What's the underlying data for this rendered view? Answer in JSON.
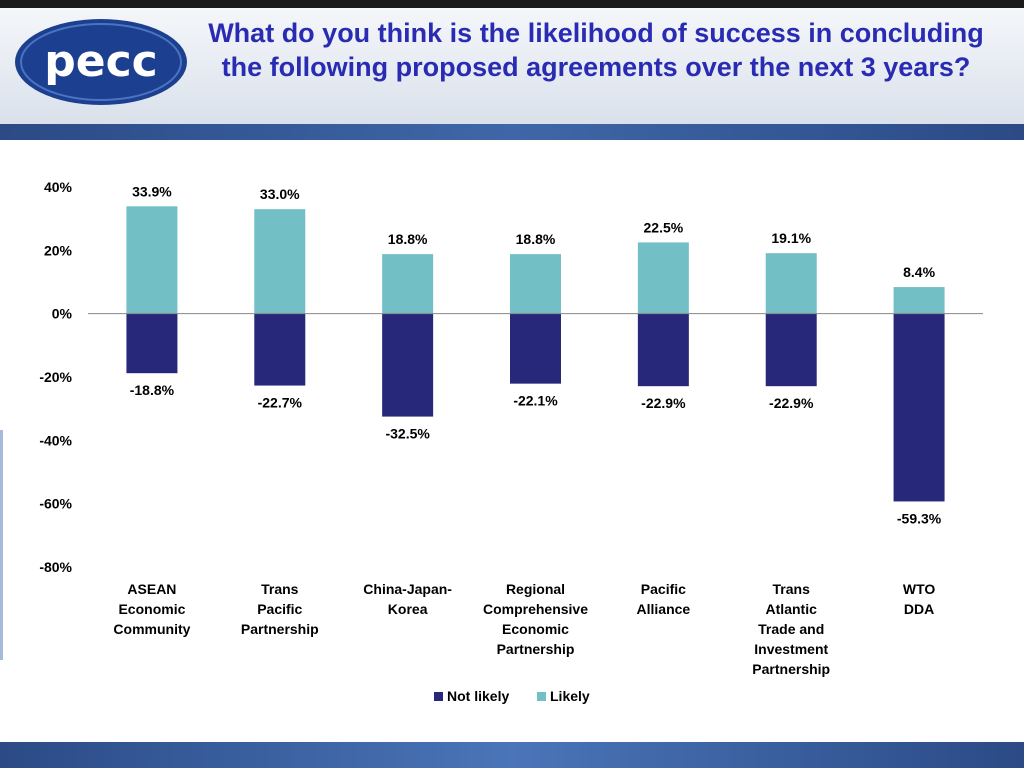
{
  "logo": {
    "text": "pecc"
  },
  "title": "What do you think is the likelihood of success in concluding the following proposed agreements over the next 3 years?",
  "colors": {
    "likely": "#72bfc6",
    "not_likely": "#27287a",
    "title": "#2a2bb3",
    "band": "#2b4a86"
  },
  "chart_data": {
    "type": "bar",
    "stacked": true,
    "categories": [
      [
        "ASEAN",
        "Economic",
        "Community"
      ],
      [
        "Trans",
        "Pacific",
        "Partnership"
      ],
      [
        "China-Japan-",
        "Korea"
      ],
      [
        "Regional",
        "Comprehensive",
        "Economic",
        "Partnership"
      ],
      [
        "Pacific",
        "Alliance"
      ],
      [
        "Trans",
        "Atlantic",
        "Trade and",
        "Investment",
        "Partnership"
      ],
      [
        "WTO",
        "DDA"
      ]
    ],
    "series": [
      {
        "name": "Not likely",
        "values": [
          -18.8,
          -22.7,
          -32.5,
          -22.1,
          -22.9,
          -22.9,
          -59.3
        ],
        "labels": [
          "-18.8%",
          "-22.7%",
          "-32.5%",
          "-22.1%",
          "-22.9%",
          "-22.9%",
          "-59.3%"
        ]
      },
      {
        "name": "Likely",
        "values": [
          33.9,
          33.0,
          18.8,
          18.8,
          22.5,
          19.1,
          8.4
        ],
        "labels": [
          "33.9%",
          "33.0%",
          "18.8%",
          "18.8%",
          "22.5%",
          "19.1%",
          "8.4%"
        ]
      }
    ],
    "yticks": [
      "40%",
      "20%",
      "0%",
      "-20%",
      "-40%",
      "-60%",
      "-80%"
    ],
    "ylim": [
      -80,
      40
    ],
    "legend": "bottom-center",
    "grid": false
  }
}
